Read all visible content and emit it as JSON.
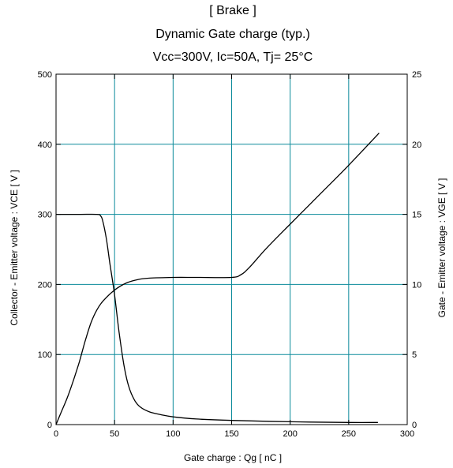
{
  "chart_data": {
    "type": "line",
    "title_lines": [
      "[ Brake ]",
      "Dynamic Gate charge  (typ.)",
      "Vcc=300V, Ic=50A, Tj= 25°C"
    ],
    "xlabel": "Gate charge  :  Qg  [ nC ]",
    "ylabel_left": "Collector - Emitter voltage  :  VCE  [ V ]",
    "ylabel_right": "Gate - Emitter voltage  :  VGE  [ V ]",
    "xlim": [
      0,
      300
    ],
    "ylim_left": [
      0,
      500
    ],
    "ylim_right": [
      0,
      25
    ],
    "xticks": [
      "0",
      "50",
      "100",
      "150",
      "200",
      "250",
      "300"
    ],
    "yticks_left": [
      "0",
      "100",
      "200",
      "300",
      "400",
      "500"
    ],
    "yticks_right": [
      "0",
      "5",
      "10",
      "15",
      "20",
      "25"
    ],
    "grid": true,
    "grid_color": "#0a8a9a",
    "line_color": "#000000",
    "series": [
      {
        "axis": "left",
        "points": [
          [
            0,
            300
          ],
          [
            20,
            300
          ],
          [
            35,
            300
          ],
          [
            38,
            298
          ],
          [
            40,
            290
          ],
          [
            43,
            265
          ],
          [
            46,
            230
          ],
          [
            50,
            185
          ],
          [
            54,
            130
          ],
          [
            58,
            85
          ],
          [
            62,
            55
          ],
          [
            67,
            35
          ],
          [
            72,
            25
          ],
          [
            80,
            18
          ],
          [
            90,
            14
          ],
          [
            100,
            11
          ],
          [
            120,
            8
          ],
          [
            150,
            6
          ],
          [
            200,
            4
          ],
          [
            250,
            3
          ],
          [
            275,
            3
          ]
        ]
      },
      {
        "axis": "right",
        "points": [
          [
            0,
            0
          ],
          [
            5,
            1
          ],
          [
            10,
            2
          ],
          [
            15,
            3.2
          ],
          [
            20,
            4.5
          ],
          [
            25,
            6
          ],
          [
            30,
            7.3
          ],
          [
            35,
            8.2
          ],
          [
            40,
            8.8
          ],
          [
            50,
            9.6
          ],
          [
            60,
            10.1
          ],
          [
            70,
            10.35
          ],
          [
            80,
            10.45
          ],
          [
            100,
            10.5
          ],
          [
            120,
            10.5
          ],
          [
            150,
            10.5
          ],
          [
            158,
            10.7
          ],
          [
            165,
            11.2
          ],
          [
            180,
            12.6
          ],
          [
            200,
            14.3
          ],
          [
            225,
            16.4
          ],
          [
            250,
            18.5
          ],
          [
            276,
            20.8
          ]
        ]
      }
    ]
  }
}
